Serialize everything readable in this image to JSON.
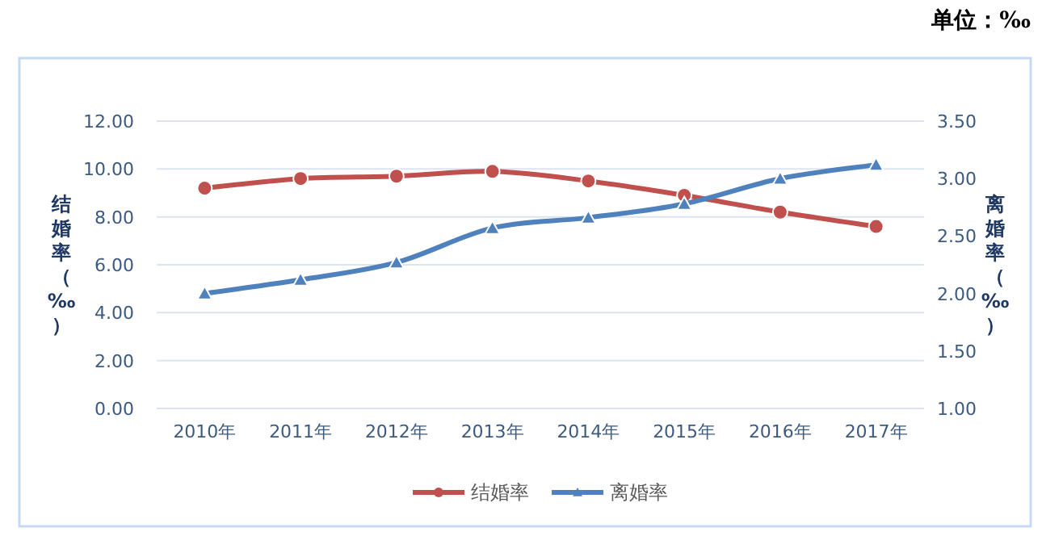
{
  "chart_data": {
    "type": "line",
    "categories": [
      "2010年",
      "2011年",
      "2012年",
      "2013年",
      "2014年",
      "2015年",
      "2016年",
      "2017年"
    ],
    "series": [
      {
        "name": "结婚率",
        "color": "#c0504d",
        "marker": "circle",
        "values": [
          9.2,
          9.6,
          9.7,
          9.9,
          9.5,
          8.9,
          8.2,
          7.6
        ]
      },
      {
        "name": "离婚率",
        "color": "#4f81bd",
        "marker": "triangle",
        "axis": "y2",
        "values": [
          2.0,
          2.12,
          2.27,
          2.57,
          2.66,
          2.78,
          3.0,
          3.12
        ]
      }
    ],
    "ylabel": "结婚率（‰）",
    "y2label": "离婚率（‰）",
    "ylim": [
      0,
      12
    ],
    "yticks": [
      {
        "value": 0,
        "label": "0.00"
      },
      {
        "value": 2,
        "label": "2.00"
      },
      {
        "value": 4,
        "label": "4.00"
      },
      {
        "value": 6,
        "label": "6.00"
      },
      {
        "value": 8,
        "label": "8.00"
      },
      {
        "value": 10,
        "label": "10.00"
      },
      {
        "value": 12,
        "label": "12.00"
      }
    ],
    "y2lim": [
      1,
      3.5
    ],
    "y2ticks": [
      {
        "value": 1,
        "label": "1.00"
      },
      {
        "value": 1.5,
        "label": "1.50"
      },
      {
        "value": 2,
        "label": "2.00"
      },
      {
        "value": 2.5,
        "label": "2.50"
      },
      {
        "value": 3,
        "label": "3.00"
      },
      {
        "value": 3.5,
        "label": "3.50"
      }
    ],
    "grid": "y",
    "legend": "bottom",
    "annotations": [
      "单位：‰"
    ]
  }
}
